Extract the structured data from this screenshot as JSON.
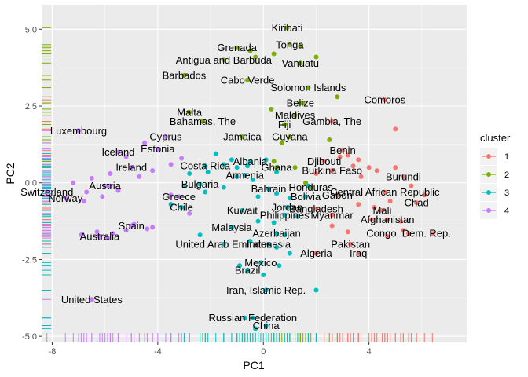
{
  "chart_data": {
    "type": "scatter",
    "xlabel": "PC1",
    "ylabel": "PC2",
    "xlim": [
      -8.4,
      7.7
    ],
    "ylim": [
      -5.2,
      5.8
    ],
    "xticks": [
      -8,
      -4,
      0,
      4
    ],
    "yticks": [
      -5.0,
      -2.5,
      0.0,
      2.5,
      5.0
    ],
    "ytick_labels": [
      "-5.0",
      "-2.5",
      "0.0",
      "2.5",
      "5.0"
    ],
    "grid": true,
    "rug": true,
    "legend": {
      "title": "cluster",
      "position": "right",
      "entries": [
        {
          "label": "1",
          "color": "#F8766D"
        },
        {
          "label": "2",
          "color": "#7CAE00"
        },
        {
          "label": "3",
          "color": "#00BFC4"
        },
        {
          "label": "4",
          "color": "#C77CFF"
        }
      ]
    },
    "labeled_points": [
      {
        "label": "Kiribati",
        "x": 0.9,
        "y": 5.05,
        "cluster": "2"
      },
      {
        "label": "Tonga",
        "x": 1.0,
        "y": 4.5,
        "cluster": "2"
      },
      {
        "label": "Grenada",
        "x": -1.0,
        "y": 4.4,
        "cluster": "2"
      },
      {
        "label": "Antigua and Barbuda",
        "x": -1.5,
        "y": 4.0,
        "cluster": "2"
      },
      {
        "label": "Vanuatu",
        "x": 1.4,
        "y": 3.9,
        "cluster": "2"
      },
      {
        "label": "Barbados",
        "x": -3.0,
        "y": 3.5,
        "cluster": "2"
      },
      {
        "label": "Cabo Verde",
        "x": -0.6,
        "y": 3.35,
        "cluster": "2"
      },
      {
        "label": "Solomon Islands",
        "x": 1.7,
        "y": 3.1,
        "cluster": "2"
      },
      {
        "label": "Comoros",
        "x": 4.6,
        "y": 2.7,
        "cluster": "1"
      },
      {
        "label": "Malta",
        "x": -2.8,
        "y": 2.3,
        "cluster": "2"
      },
      {
        "label": "Belize",
        "x": 1.4,
        "y": 2.6,
        "cluster": "2"
      },
      {
        "label": "Maldives",
        "x": 1.2,
        "y": 2.2,
        "cluster": "2"
      },
      {
        "label": "Bahamas, The",
        "x": -2.3,
        "y": 2.0,
        "cluster": "2"
      },
      {
        "label": "Fiji",
        "x": 0.8,
        "y": 1.9,
        "cluster": "2"
      },
      {
        "label": "Gambia, The",
        "x": 2.6,
        "y": 2.0,
        "cluster": "1"
      },
      {
        "label": "Luxembourg",
        "x": -7.0,
        "y": 1.7,
        "cluster": "4"
      },
      {
        "label": "Guyana",
        "x": 1.0,
        "y": 1.5,
        "cluster": "2"
      },
      {
        "label": "Cyprus",
        "x": -3.7,
        "y": 1.5,
        "cluster": "4"
      },
      {
        "label": "Jamaica",
        "x": -0.8,
        "y": 1.5,
        "cluster": "2"
      },
      {
        "label": "Estonia",
        "x": -4.0,
        "y": 1.1,
        "cluster": "4"
      },
      {
        "label": "Benin",
        "x": 3.0,
        "y": 1.05,
        "cluster": "1"
      },
      {
        "label": "Iceland",
        "x": -5.5,
        "y": 1.0,
        "cluster": "4"
      },
      {
        "label": "Djibouti",
        "x": 2.3,
        "y": 0.7,
        "cluster": "1"
      },
      {
        "label": "Albania",
        "x": -0.5,
        "y": 0.7,
        "cluster": "3"
      },
      {
        "label": "Costa Rica",
        "x": -2.2,
        "y": 0.55,
        "cluster": "3"
      },
      {
        "label": "Ghana",
        "x": 0.5,
        "y": 0.5,
        "cluster": "2"
      },
      {
        "label": "Ireland",
        "x": -5.0,
        "y": 0.5,
        "cluster": "4"
      },
      {
        "label": "Burkina Faso",
        "x": 2.6,
        "y": 0.4,
        "cluster": "1"
      },
      {
        "label": "Armenia",
        "x": -0.7,
        "y": 0.25,
        "cluster": "3"
      },
      {
        "label": "Burundi",
        "x": 5.3,
        "y": 0.2,
        "cluster": "1"
      },
      {
        "label": "Austria",
        "x": -6.0,
        "y": -0.1,
        "cluster": "4"
      },
      {
        "label": "Bulgaria",
        "x": -2.4,
        "y": -0.05,
        "cluster": "3"
      },
      {
        "label": "Honduras",
        "x": 1.8,
        "y": -0.15,
        "cluster": "2"
      },
      {
        "label": "Bahrain",
        "x": 0.2,
        "y": -0.2,
        "cluster": "3"
      },
      {
        "label": "Switzerland",
        "x": -8.2,
        "y": -0.3,
        "cluster": "4"
      },
      {
        "label": "Gabon",
        "x": 2.8,
        "y": -0.4,
        "cluster": "1"
      },
      {
        "label": "Bolivia",
        "x": 1.6,
        "y": -0.45,
        "cluster": "3"
      },
      {
        "label": "Central African Republic",
        "x": 4.6,
        "y": -0.3,
        "cluster": "1"
      },
      {
        "label": "Norway",
        "x": -7.5,
        "y": -0.5,
        "cluster": "4"
      },
      {
        "label": "Greece",
        "x": -3.2,
        "y": -0.45,
        "cluster": "4"
      },
      {
        "label": "Chad",
        "x": 5.8,
        "y": -0.65,
        "cluster": "1"
      },
      {
        "label": "Jordan",
        "x": 0.9,
        "y": -0.8,
        "cluster": "3"
      },
      {
        "label": "Bangladesh",
        "x": 2.0,
        "y": -0.85,
        "cluster": "1"
      },
      {
        "label": "Chile",
        "x": -3.1,
        "y": -0.8,
        "cluster": "3"
      },
      {
        "label": "Mali",
        "x": 4.5,
        "y": -0.9,
        "cluster": "1"
      },
      {
        "label": "Myanmar",
        "x": 2.6,
        "y": -1.05,
        "cluster": "1"
      },
      {
        "label": "Philippines",
        "x": 0.8,
        "y": -1.05,
        "cluster": "3"
      },
      {
        "label": "Kuwait",
        "x": -0.8,
        "y": -0.9,
        "cluster": "3"
      },
      {
        "label": "Afghanistan",
        "x": 4.7,
        "y": -1.2,
        "cluster": "1"
      },
      {
        "label": "Malaysia",
        "x": -1.2,
        "y": -1.45,
        "cluster": "3"
      },
      {
        "label": "Spain",
        "x": -5.0,
        "y": -1.4,
        "cluster": "4"
      },
      {
        "label": "Congo, Dem. Rep.",
        "x": 5.5,
        "y": -1.65,
        "cluster": "1"
      },
      {
        "label": "Azerbaijan",
        "x": 0.5,
        "y": -1.65,
        "cluster": "3"
      },
      {
        "label": "Australia",
        "x": -6.2,
        "y": -1.75,
        "cluster": "4"
      },
      {
        "label": "United Arab Emirates",
        "x": -1.5,
        "y": -2.0,
        "cluster": "3"
      },
      {
        "label": "Indonesia",
        "x": 0.2,
        "y": -2.0,
        "cluster": "3"
      },
      {
        "label": "Pakistan",
        "x": 3.3,
        "y": -2.0,
        "cluster": "1"
      },
      {
        "label": "Algeria",
        "x": 2.0,
        "y": -2.3,
        "cluster": "1"
      },
      {
        "label": "Iraq",
        "x": 3.6,
        "y": -2.3,
        "cluster": "1"
      },
      {
        "label": "Mexico",
        "x": -0.1,
        "y": -2.6,
        "cluster": "3"
      },
      {
        "label": "Brazil",
        "x": -0.6,
        "y": -2.85,
        "cluster": "3"
      },
      {
        "label": "Iran, Islamic Rep.",
        "x": 0.1,
        "y": -3.5,
        "cluster": "3"
      },
      {
        "label": "United States",
        "x": -6.5,
        "y": -3.8,
        "cluster": "4"
      },
      {
        "label": "Russian Federation",
        "x": -0.4,
        "y": -4.4,
        "cluster": "3"
      },
      {
        "label": "China",
        "x": 0.1,
        "y": -4.65,
        "cluster": "3"
      }
    ],
    "unlabeled_points": [
      [
        5.0,
        1.75,
        "1"
      ],
      [
        5.0,
        0.5,
        "1"
      ],
      [
        4.3,
        0.4,
        "1"
      ],
      [
        3.6,
        0.75,
        "1"
      ],
      [
        3.2,
        0.9,
        "1"
      ],
      [
        2.9,
        0.85,
        "1"
      ],
      [
        3.7,
        0.2,
        "1"
      ],
      [
        4.0,
        0.5,
        "1"
      ],
      [
        6.1,
        -0.4,
        "1"
      ],
      [
        5.6,
        -0.1,
        "1"
      ],
      [
        4.2,
        -0.8,
        "1"
      ],
      [
        5.3,
        -1.55,
        "1"
      ],
      [
        6.4,
        -1.65,
        "1"
      ],
      [
        5.2,
        -1.25,
        "1"
      ],
      [
        4.8,
        -0.6,
        "1"
      ],
      [
        3.6,
        -0.7,
        "1"
      ],
      [
        4.1,
        -1.2,
        "1"
      ],
      [
        2.6,
        -1.4,
        "1"
      ],
      [
        3.2,
        -1.6,
        "1"
      ],
      [
        4.7,
        -1.75,
        "1"
      ],
      [
        3.4,
        0.55,
        "1"
      ],
      [
        2.0,
        0.3,
        "1"
      ],
      [
        -0.3,
        4.1,
        "2"
      ],
      [
        0.4,
        4.2,
        "2"
      ],
      [
        1.4,
        4.45,
        "2"
      ],
      [
        2.0,
        4.1,
        "2"
      ],
      [
        -0.5,
        4.3,
        "2"
      ],
      [
        2.8,
        2.8,
        "2"
      ],
      [
        1.5,
        2.6,
        "2"
      ],
      [
        0.3,
        2.4,
        "2"
      ],
      [
        2.5,
        1.4,
        "2"
      ],
      [
        0.7,
        1.3,
        "2"
      ],
      [
        1.2,
        0.5,
        "2"
      ],
      [
        1.6,
        0.0,
        "2"
      ],
      [
        0.4,
        0.7,
        "2"
      ],
      [
        -1.8,
        0.95,
        "3"
      ],
      [
        -1.5,
        0.6,
        "3"
      ],
      [
        -1.2,
        0.75,
        "3"
      ],
      [
        -1.0,
        0.5,
        "3"
      ],
      [
        -0.6,
        0.55,
        "3"
      ],
      [
        -1.0,
        0.2,
        "3"
      ],
      [
        -0.4,
        0.1,
        "3"
      ],
      [
        0.1,
        0.75,
        "3"
      ],
      [
        0.5,
        0.35,
        "3"
      ],
      [
        -2.1,
        0.35,
        "3"
      ],
      [
        -2.8,
        0.3,
        "3"
      ],
      [
        -3.0,
        -0.1,
        "3"
      ],
      [
        -2.2,
        -0.3,
        "3"
      ],
      [
        -1.5,
        -0.15,
        "3"
      ],
      [
        -0.2,
        -0.45,
        "3"
      ],
      [
        0.5,
        -0.35,
        "3"
      ],
      [
        1.0,
        -0.5,
        "3"
      ],
      [
        1.3,
        -1.1,
        "3"
      ],
      [
        -0.2,
        -1.25,
        "3"
      ],
      [
        0.4,
        -1.3,
        "3"
      ],
      [
        0.8,
        -1.7,
        "3"
      ],
      [
        -0.5,
        -1.9,
        "3"
      ],
      [
        0.5,
        -2.1,
        "3"
      ],
      [
        1.0,
        -2.3,
        "3"
      ],
      [
        -2.4,
        -1.7,
        "3"
      ],
      [
        -3.5,
        -0.7,
        "3"
      ],
      [
        1.7,
        -0.1,
        "3"
      ],
      [
        0.6,
        -2.7,
        "3"
      ],
      [
        -0.9,
        -2.7,
        "3"
      ],
      [
        0.0,
        -3.0,
        "3"
      ],
      [
        -0.7,
        -4.4,
        "3"
      ],
      [
        -0.3,
        -4.75,
        "3"
      ],
      [
        2.0,
        -3.5,
        "3"
      ],
      [
        -7.2,
        0.0,
        "4"
      ],
      [
        -6.5,
        0.15,
        "4"
      ],
      [
        -5.8,
        0.3,
        "4"
      ],
      [
        -6.7,
        -0.3,
        "4"
      ],
      [
        -6.1,
        -0.45,
        "4"
      ],
      [
        -5.8,
        -0.1,
        "4"
      ],
      [
        -5.5,
        -0.25,
        "4"
      ],
      [
        -4.7,
        0.2,
        "4"
      ],
      [
        -4.2,
        0.4,
        "4"
      ],
      [
        -3.5,
        0.6,
        "4"
      ],
      [
        -3.1,
        0.8,
        "4"
      ],
      [
        -5.2,
        0.85,
        "4"
      ],
      [
        -4.5,
        1.3,
        "4"
      ],
      [
        -6.8,
        -0.6,
        "4"
      ],
      [
        -6.3,
        -1.6,
        "4"
      ],
      [
        -5.9,
        -1.8,
        "4"
      ],
      [
        -5.2,
        -1.55,
        "4"
      ],
      [
        -4.4,
        -1.5,
        "4"
      ],
      [
        -5.7,
        -1.65,
        "4"
      ],
      [
        -4.9,
        -1.35,
        "4"
      ],
      [
        -4.2,
        -1.45,
        "4"
      ],
      [
        -3.5,
        -0.4,
        "4"
      ],
      [
        -2.8,
        -1.0,
        "4"
      ],
      [
        -6.9,
        -1.7,
        "4"
      ]
    ]
  }
}
